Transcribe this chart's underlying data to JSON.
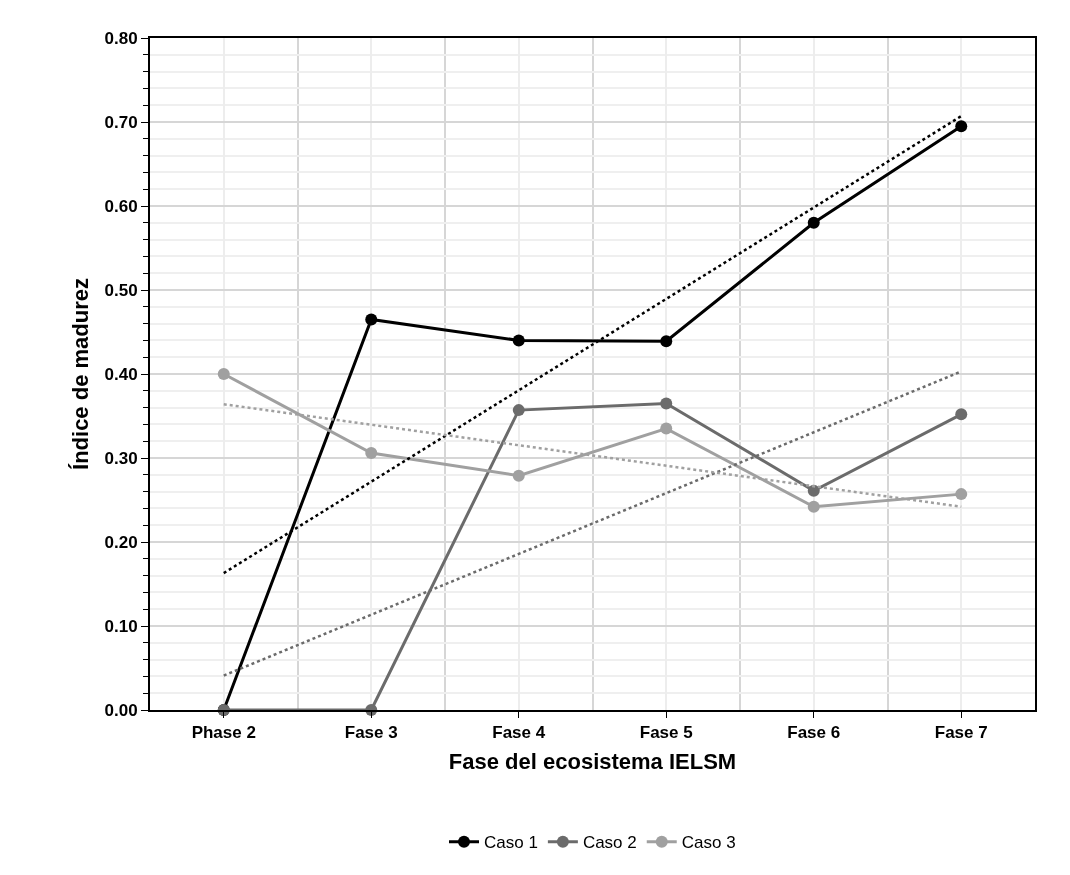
{
  "chart_data": {
    "type": "line",
    "xlabel": "Fase del ecosistema IELSM",
    "ylabel": "Índice de madurez",
    "categories": [
      "Phase 2",
      "Fase 3",
      "Fase 4",
      "Fase 5",
      "Fase 6",
      "Fase 7"
    ],
    "series": [
      {
        "name": "Caso 1",
        "color": "#000000",
        "values": [
          0.0,
          0.465,
          0.44,
          0.439,
          0.58,
          0.695
        ],
        "marker": "circle",
        "line_style": "solid"
      },
      {
        "name": "Caso 2",
        "color": "#6b6b6b",
        "values": [
          0.0,
          0.0,
          0.357,
          0.365,
          0.261,
          0.352
        ],
        "marker": "circle",
        "line_style": "solid"
      },
      {
        "name": "Caso 3",
        "color": "#a0a0a0",
        "values": [
          0.4,
          0.306,
          0.279,
          0.335,
          0.242,
          0.257
        ],
        "marker": "circle",
        "line_style": "solid"
      },
      {
        "color": "#000000",
        "x": [
          "Phase 2",
          "Fase 7"
        ],
        "values": [
          0.163,
          0.707
        ],
        "marker": "none",
        "line_style": "dotted"
      },
      {
        "color": "#6b6b6b",
        "x": [
          "Phase 2",
          "Fase 7"
        ],
        "values": [
          0.041,
          0.403
        ],
        "marker": "none",
        "line_style": "dotted"
      },
      {
        "color": "#a0a0a0",
        "x": [
          "Phase 2",
          "Fase 7"
        ],
        "values": [
          0.364,
          0.242
        ],
        "marker": "none",
        "line_style": "dotted"
      }
    ],
    "ylim": [
      0,
      0.8
    ],
    "yticks": [
      {
        "value": 0,
        "label": "0.00"
      },
      {
        "value": 0.1,
        "label": "0.10"
      },
      {
        "value": 0.2,
        "label": "0.20"
      },
      {
        "value": 0.3,
        "label": "0.30"
      },
      {
        "value": 0.4,
        "label": "0.40"
      },
      {
        "value": 0.5,
        "label": "0.50"
      },
      {
        "value": 0.6,
        "label": "0.60"
      },
      {
        "value": 0.7,
        "label": "0.70"
      },
      {
        "value": 0.8,
        "label": "0.80"
      }
    ],
    "grid": true,
    "legend": "bottom"
  }
}
